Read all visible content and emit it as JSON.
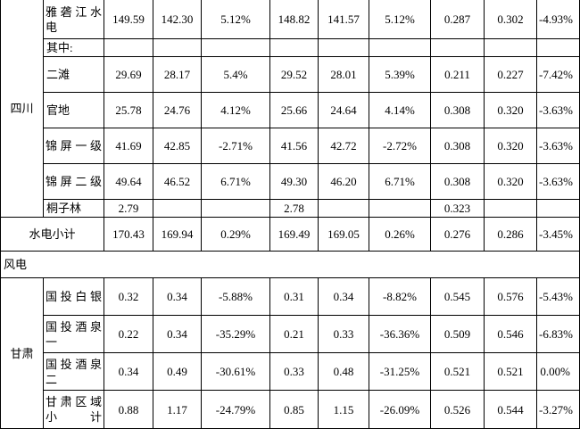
{
  "sichuan": {
    "province": "四川",
    "rows": [
      {
        "name": "雅 砻 江 水电",
        "values": [
          "149.59",
          "142.30",
          "5.12%",
          "148.82",
          "141.57",
          "5.12%",
          "0.287",
          "0.302",
          "-4.93%"
        ]
      },
      {
        "name": "其中:"
      },
      {
        "name": "二滩",
        "values": [
          "29.69",
          "28.17",
          "5.4%",
          "29.52",
          "28.01",
          "5.39%",
          "0.211",
          "0.227",
          "-7.42%"
        ]
      },
      {
        "name": "官地",
        "values": [
          "25.78",
          "24.76",
          "4.12%",
          "25.66",
          "24.64",
          "4.14%",
          "0.308",
          "0.320",
          "-3.63%"
        ]
      },
      {
        "name": "锦 屏 一 级",
        "values": [
          "41.69",
          "42.85",
          "-2.71%",
          "41.56",
          "42.72",
          "-2.72%",
          "0.308",
          "0.320",
          "-3.63%"
        ]
      },
      {
        "name": "锦 屏 二 级",
        "values": [
          "49.64",
          "46.52",
          "6.71%",
          "49.30",
          "46.20",
          "6.71%",
          "0.308",
          "0.320",
          "-3.63%"
        ]
      },
      {
        "name": "桐子林",
        "values": [
          "2.79",
          "",
          "",
          "2.78",
          "",
          "",
          "0.323",
          "",
          ""
        ]
      }
    ]
  },
  "hydro_subtotal": {
    "label": "水电小计",
    "values": [
      "170.43",
      "169.94",
      "0.29%",
      "169.49",
      "169.05",
      "0.26%",
      "0.276",
      "0.286",
      "-3.45%"
    ]
  },
  "wind_section": {
    "label": "风电"
  },
  "gansu": {
    "province": "甘肃",
    "rows": [
      {
        "name": "国 投 白 银",
        "values": [
          "0.32",
          "0.34",
          "-5.88%",
          "0.31",
          "0.34",
          "-8.82%",
          "0.545",
          "0.576",
          "-5.43%"
        ]
      },
      {
        "name": "国 投 酒 泉一",
        "values": [
          "0.22",
          "0.34",
          "-35.29%",
          "0.21",
          "0.33",
          "-36.36%",
          "0.509",
          "0.546",
          "-6.83%"
        ]
      },
      {
        "name": "国 投 酒 泉二",
        "values": [
          "0.34",
          "0.49",
          "-30.61%",
          "0.33",
          "0.48",
          "-31.25%",
          "0.521",
          "0.521",
          "0.00%"
        ]
      },
      {
        "name": "甘 肃 区 域小计",
        "values": [
          "0.88",
          "1.17",
          "-24.79%",
          "0.85",
          "1.15",
          "-26.09%",
          "0.526",
          "0.544",
          "-3.27%"
        ]
      }
    ]
  }
}
